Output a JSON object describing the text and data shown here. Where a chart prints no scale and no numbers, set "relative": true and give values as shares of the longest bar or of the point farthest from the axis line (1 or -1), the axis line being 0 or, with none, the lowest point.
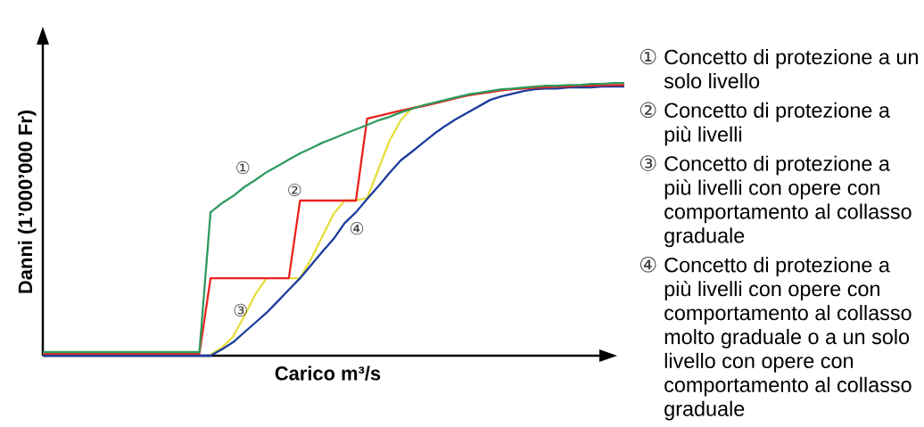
{
  "chart_data": {
    "type": "line",
    "relative": true,
    "xlabel": "Carico m³/s",
    "ylabel": "Danni (1’000’000 Fr)",
    "categories": [
      null,
      null,
      null,
      null,
      null,
      null,
      null,
      null,
      null,
      null,
      null,
      null,
      null,
      null,
      null,
      null,
      null,
      null,
      null,
      null,
      null,
      null,
      null,
      null,
      null,
      null,
      null,
      null,
      null,
      null,
      null,
      null,
      null,
      null,
      null,
      null,
      null,
      null,
      null,
      null,
      null,
      null,
      null,
      null,
      null,
      null,
      null,
      null,
      null,
      null,
      null,
      null,
      null
    ],
    "series": [
      {
        "name": "③",
        "color": "#e6df3c",
        "values": [
          null,
          null,
          null,
          null,
          null,
          null,
          null,
          null,
          null,
          null,
          null,
          null,
          null,
          null,
          null,
          0.004,
          0.029,
          0.069,
          0.144,
          0.225,
          0.284,
          null,
          0.284,
          0.284,
          0.356,
          0.438,
          0.52,
          0.569,
          0.569,
          0.578,
          0.683,
          0.788,
          0.863,
          0.908,
          0.918,
          null,
          null,
          null,
          null,
          null,
          null,
          null,
          null,
          null,
          null,
          null,
          null,
          null,
          null,
          null,
          null,
          null,
          null
        ]
      },
      {
        "name": "④",
        "color": "#1b3c9e",
        "values": [
          0,
          0,
          0,
          0,
          0,
          0,
          0,
          0,
          0,
          0,
          0,
          0,
          0,
          0,
          0,
          0,
          0.023,
          0.049,
          0.085,
          0.121,
          0.157,
          0.199,
          0.242,
          0.284,
          0.333,
          0.382,
          0.428,
          0.487,
          0.526,
          0.575,
          0.621,
          0.67,
          0.716,
          0.748,
          0.781,
          0.814,
          0.843,
          0.869,
          0.892,
          0.915,
          0.938,
          0.951,
          0.961,
          0.971,
          0.977,
          0.98,
          0.98,
          0.984,
          0.984,
          0.984,
          0.987,
          0.987,
          0.987
        ]
      },
      {
        "name": "②",
        "color": "#e8231f",
        "values": [
          0.007,
          0.007,
          0.007,
          0.007,
          0.007,
          0.007,
          0.007,
          0.007,
          0.007,
          0.007,
          0.007,
          0.007,
          0.007,
          0.007,
          0.007,
          0.284,
          0.284,
          0.284,
          0.284,
          0.284,
          0.284,
          0.284,
          0.284,
          0.569,
          0.569,
          0.569,
          0.569,
          0.569,
          0.569,
          0.869,
          0.879,
          0.889,
          0.899,
          0.908,
          0.915,
          0.925,
          0.935,
          0.945,
          0.954,
          0.961,
          0.967,
          0.973,
          0.977,
          0.98,
          0.983,
          0.985,
          0.987,
          0.988,
          0.99,
          0.99,
          0.992,
          0.993,
          0.993
        ]
      },
      {
        "name": "①",
        "color": "#2f9a5f",
        "values": [
          0.013,
          0.013,
          0.013,
          0.013,
          0.013,
          0.013,
          0.013,
          0.013,
          0.013,
          0.013,
          0.013,
          0.013,
          0.013,
          0.013,
          0.013,
          0.526,
          0.559,
          0.585,
          0.618,
          0.644,
          0.673,
          0.696,
          0.719,
          0.742,
          0.761,
          0.781,
          0.797,
          0.814,
          0.83,
          0.846,
          0.863,
          0.876,
          0.892,
          0.905,
          0.918,
          0.928,
          0.938,
          0.948,
          0.958,
          0.964,
          0.971,
          0.977,
          0.98,
          0.984,
          0.987,
          0.99,
          0.99,
          0.993,
          0.993,
          0.997,
          0.997,
          1,
          1
        ]
      }
    ],
    "annotations": [
      "Concetto di protezione a un solo livello",
      "Concetto di protezione a più livelli",
      "Concetto di protezione a più livelli con opere con comportamento al collasso graduale",
      "Concetto di protezione a più livelli con opere con comportamento al collasso molto graduale o a un solo livello con opere con comportamento al collasso graduale"
    ]
  }
}
